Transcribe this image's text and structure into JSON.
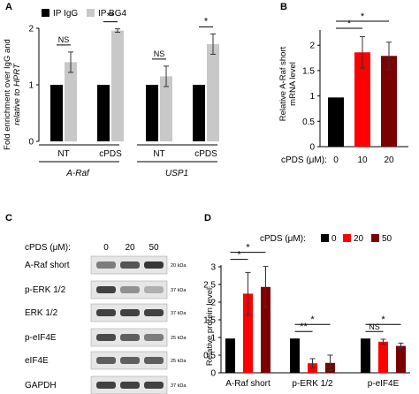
{
  "panels": {
    "A": {
      "letter": "A"
    },
    "B": {
      "letter": "B"
    },
    "C": {
      "letter": "C"
    },
    "D": {
      "letter": "D"
    }
  },
  "chart_data": [
    {
      "id": "A",
      "type": "bar",
      "title": "",
      "ylabel_line1": "Fold enrichment over IgG and",
      "ylabel_line2": "relative to HPRT",
      "ylim": [
        0,
        2
      ],
      "yticks": [
        "0",
        "1",
        "2"
      ],
      "ytick_values": [
        0,
        1,
        2
      ],
      "categories": [
        "NT",
        "cPDS",
        "NT",
        "cPDS"
      ],
      "groups": [
        {
          "label": "A-Raf",
          "categories_index": [
            0,
            1
          ]
        },
        {
          "label": "USP1",
          "categories_index": [
            2,
            3
          ]
        }
      ],
      "series": [
        {
          "name": "IP IgG",
          "color": "#000000",
          "values": [
            1,
            1,
            1,
            1
          ],
          "errors": [
            0,
            0,
            0,
            0
          ]
        },
        {
          "name": "IP BG4",
          "color": "#c8c8c8",
          "values": [
            1.4,
            1.96,
            1.15,
            1.72
          ],
          "errors": [
            0.18,
            0.03,
            0.18,
            0.18
          ]
        }
      ],
      "significance": [
        {
          "label": "NS",
          "category": 0
        },
        {
          "label": "**",
          "category": 1
        },
        {
          "label": "NS",
          "category": 2
        },
        {
          "label": "*",
          "category": 3
        }
      ],
      "legend": "top"
    },
    {
      "id": "B",
      "type": "bar",
      "title": "",
      "ylabel_line1": "Relative A-Raf short",
      "ylabel_line2": "mRNA level",
      "xlabel": "cPDS (μM):",
      "ylim": [
        0,
        2.3
      ],
      "yticks": [
        "0",
        "0.5",
        "1",
        "1.5",
        "2"
      ],
      "ytick_values": [
        0,
        0.5,
        1,
        1.5,
        2
      ],
      "categories": [
        "0",
        "10",
        "20"
      ],
      "values": [
        0.97,
        1.86,
        1.79
      ],
      "errors": [
        0,
        0.31,
        0.27
      ],
      "colors": [
        "#000000",
        "#ff0000",
        "#7b0000"
      ],
      "significance": [
        "*",
        "*"
      ]
    },
    {
      "id": "D",
      "type": "bar",
      "title": "",
      "ylabel": "Relative protein level",
      "legend_prefix": "cPDS (μM):",
      "ylim": [
        0,
        3
      ],
      "yticks": [
        "0",
        "0.5",
        "1",
        "1.5",
        "2",
        "2.5",
        "3"
      ],
      "ytick_values": [
        0,
        0.5,
        1,
        1.5,
        2,
        2.5,
        3
      ],
      "categories": [
        "A-Raf short",
        "p-ERK 1/2",
        "p-eIF4E"
      ],
      "series": [
        {
          "name": "0",
          "color": "#000000",
          "values": [
            0.97,
            0.97,
            0.97
          ],
          "errors": [
            0,
            0,
            0
          ]
        },
        {
          "name": "20",
          "color": "#ff0000",
          "values": [
            2.24,
            0.27,
            0.88
          ],
          "errors": [
            0.6,
            0.13,
            0.07
          ]
        },
        {
          "name": "50",
          "color": "#7b0000",
          "values": [
            2.43,
            0.28,
            0.76
          ],
          "errors": [
            0.58,
            0.22,
            0.08
          ]
        }
      ],
      "significance": [
        {
          "label": "*",
          "category": 0
        },
        {
          "label": "*",
          "category": 0
        },
        {
          "label": "**",
          "category": 1
        },
        {
          "label": "*",
          "category": 1
        },
        {
          "label": "NS",
          "category": 2
        },
        {
          "label": "*",
          "category": 2
        }
      ],
      "legend": "top"
    }
  ],
  "blot": {
    "header_label": "cPDS (μM):",
    "lanes": [
      "0",
      "20",
      "50"
    ],
    "rows": [
      {
        "label": "A-Raf short",
        "kda": "20 kDa",
        "intensity": [
          0.55,
          0.75,
          0.9
        ]
      },
      {
        "label": "p-ERK 1/2",
        "kda": "37 kDa",
        "intensity": [
          0.85,
          0.45,
          0.3
        ]
      },
      {
        "label": "ERK 1/2",
        "kda": "37 kDa",
        "intensity": [
          0.85,
          0.85,
          0.85
        ]
      },
      {
        "label": "p-eIF4E",
        "kda": "25 kDa",
        "intensity": [
          0.8,
          0.7,
          0.55
        ]
      },
      {
        "label": "eIF4E",
        "kda": "25 kDa",
        "intensity": [
          0.7,
          0.7,
          0.7
        ]
      },
      {
        "label": "GAPDH",
        "kda": "37 kDa",
        "intensity": [
          0.85,
          0.85,
          0.85
        ]
      }
    ]
  }
}
